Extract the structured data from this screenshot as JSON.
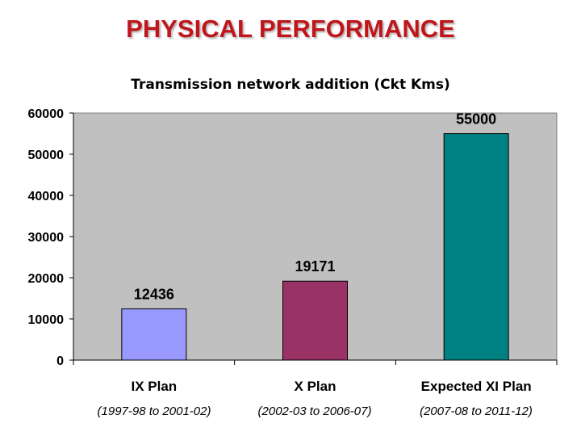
{
  "slide": {
    "title": "PHYSICAL PERFORMANCE"
  },
  "chart_data": {
    "type": "bar",
    "title": "Transmission network addition (Ckt Kms)",
    "categories": [
      "IX Plan",
      "X Plan",
      "Expected XI Plan"
    ],
    "periods": [
      "(1997-98 to 2001-02)",
      "(2002-03 to 2006-07)",
      "(2007-08 to 2011-12)"
    ],
    "values": [
      12436,
      19171,
      55000
    ],
    "data_labels": [
      "12436",
      "19171",
      "55000"
    ],
    "bar_colors": [
      "#9999ff",
      "#993366",
      "#008080"
    ],
    "ylim": [
      0,
      60000
    ],
    "yticks": [
      0,
      10000,
      20000,
      30000,
      40000,
      50000,
      60000
    ],
    "plot_background": "#c0c0c0",
    "grid": false,
    "legend": "none"
  }
}
